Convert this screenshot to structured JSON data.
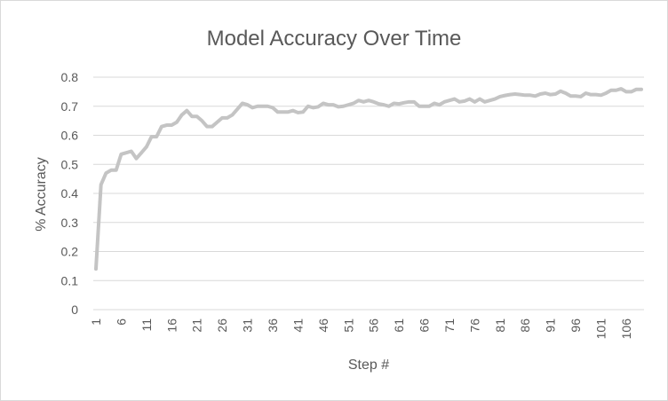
{
  "chart_data": {
    "type": "line",
    "title": "Model Accuracy Over Time",
    "xlabel": "Step #",
    "ylabel": "% Accuracy",
    "ylim": [
      0,
      0.8
    ],
    "yticks": [
      "0",
      "0.1",
      "0.2",
      "0.3",
      "0.4",
      "0.5",
      "0.6",
      "0.7",
      "0.8"
    ],
    "xticks": [
      "1",
      "6",
      "11",
      "16",
      "21",
      "26",
      "31",
      "36",
      "41",
      "46",
      "51",
      "56",
      "61",
      "66",
      "71",
      "76",
      "81",
      "86",
      "91",
      "96",
      "101",
      "106"
    ],
    "grid": true,
    "series_color": "#c4c4c4",
    "x": [
      1,
      2,
      3,
      4,
      5,
      6,
      7,
      8,
      9,
      10,
      11,
      12,
      13,
      14,
      15,
      16,
      17,
      18,
      19,
      20,
      21,
      22,
      23,
      24,
      25,
      26,
      27,
      28,
      29,
      30,
      31,
      32,
      33,
      34,
      35,
      36,
      37,
      38,
      39,
      40,
      41,
      42,
      43,
      44,
      45,
      46,
      47,
      48,
      49,
      50,
      51,
      52,
      53,
      54,
      55,
      56,
      57,
      58,
      59,
      60,
      61,
      62,
      63,
      64,
      65,
      66,
      67,
      68,
      69,
      70,
      71,
      72,
      73,
      74,
      75,
      76,
      77,
      78,
      79,
      80,
      81,
      82,
      83,
      84,
      85,
      86,
      87,
      88,
      89,
      90,
      91,
      92,
      93,
      94,
      95,
      96,
      97,
      98,
      99,
      100,
      101,
      102,
      103,
      104,
      105,
      106,
      107,
      108,
      109
    ],
    "values": [
      0.14,
      0.43,
      0.47,
      0.48,
      0.48,
      0.535,
      0.54,
      0.545,
      0.52,
      0.54,
      0.56,
      0.595,
      0.595,
      0.63,
      0.635,
      0.635,
      0.645,
      0.67,
      0.685,
      0.665,
      0.665,
      0.65,
      0.63,
      0.63,
      0.645,
      0.66,
      0.66,
      0.67,
      0.69,
      0.71,
      0.705,
      0.695,
      0.7,
      0.7,
      0.7,
      0.695,
      0.68,
      0.68,
      0.68,
      0.685,
      0.678,
      0.68,
      0.7,
      0.695,
      0.698,
      0.71,
      0.705,
      0.705,
      0.698,
      0.7,
      0.705,
      0.71,
      0.72,
      0.715,
      0.72,
      0.715,
      0.708,
      0.705,
      0.7,
      0.71,
      0.708,
      0.712,
      0.715,
      0.715,
      0.7,
      0.7,
      0.7,
      0.71,
      0.705,
      0.715,
      0.72,
      0.725,
      0.715,
      0.718,
      0.725,
      0.715,
      0.725,
      0.715,
      0.72,
      0.725,
      0.733,
      0.737,
      0.74,
      0.742,
      0.74,
      0.738,
      0.738,
      0.735,
      0.742,
      0.745,
      0.74,
      0.742,
      0.752,
      0.745,
      0.735,
      0.735,
      0.733,
      0.745,
      0.74,
      0.74,
      0.738,
      0.745,
      0.755,
      0.755,
      0.76,
      0.75,
      0.75,
      0.758,
      0.758
    ]
  }
}
